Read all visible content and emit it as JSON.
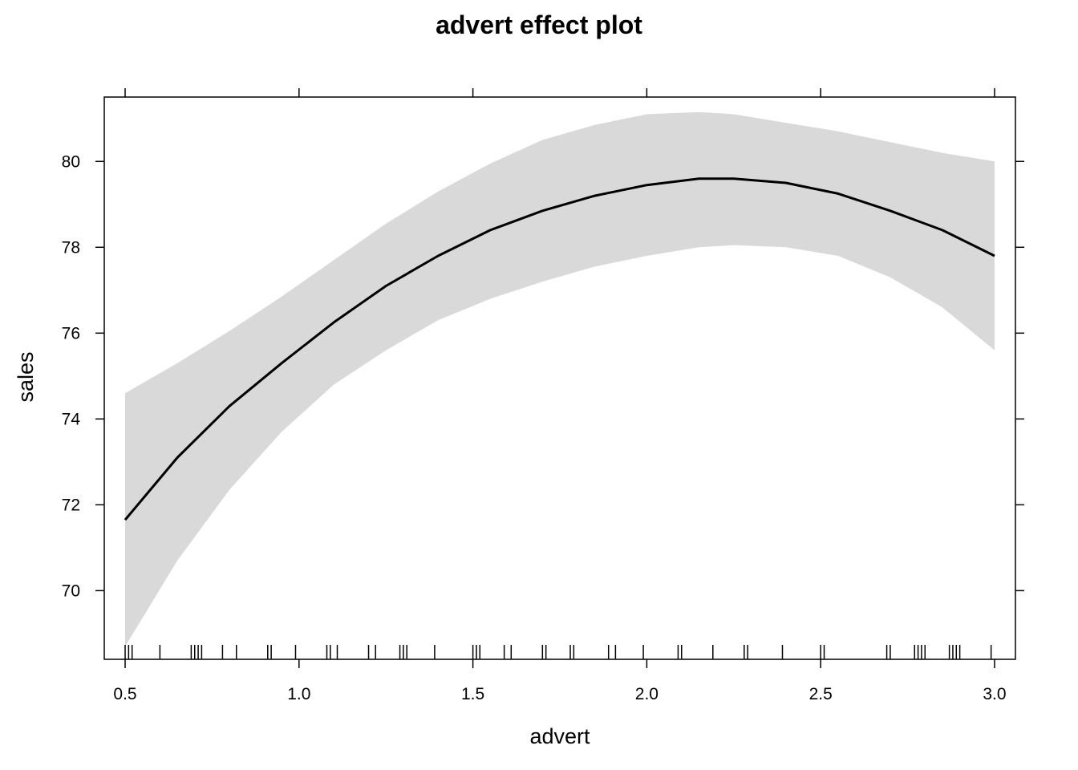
{
  "chart_data": {
    "type": "line",
    "title": "advert effect plot",
    "xlabel": "advert",
    "ylabel": "sales",
    "xlim": [
      0.44,
      3.06
    ],
    "ylim": [
      68.4,
      81.5
    ],
    "x_ticks": [
      0.5,
      1.0,
      1.5,
      2.0,
      2.5,
      3.0
    ],
    "x_tick_labels": [
      "0.5",
      "1.0",
      "1.5",
      "2.0",
      "2.5",
      "3.0"
    ],
    "y_ticks": [
      70,
      72,
      74,
      76,
      78,
      80
    ],
    "y_tick_labels": [
      "70",
      "72",
      "74",
      "76",
      "78",
      "80"
    ],
    "grid": false,
    "legend": "none",
    "colors": {
      "line": "#000000",
      "band": "#d9d9d9",
      "frame": "#000000"
    },
    "series": [
      {
        "x": [
          0.5,
          0.65,
          0.8,
          0.95,
          1.1,
          1.25,
          1.4,
          1.55,
          1.7,
          1.85,
          2.0,
          2.15,
          2.25,
          2.4,
          2.55,
          2.7,
          2.85,
          3.0
        ],
        "y": [
          71.65,
          73.1,
          74.3,
          75.3,
          76.25,
          77.1,
          77.8,
          78.4,
          78.85,
          79.2,
          79.45,
          79.6,
          79.6,
          79.5,
          79.25,
          78.85,
          78.4,
          77.8
        ],
        "lower": [
          68.7,
          70.7,
          72.35,
          73.7,
          74.8,
          75.6,
          76.3,
          76.8,
          77.2,
          77.55,
          77.8,
          78.0,
          78.05,
          78.0,
          77.8,
          77.3,
          76.6,
          75.6
        ],
        "upper": [
          74.6,
          75.3,
          76.05,
          76.85,
          77.7,
          78.55,
          79.3,
          79.95,
          80.5,
          80.85,
          81.1,
          81.15,
          81.1,
          80.9,
          80.7,
          80.45,
          80.2,
          80.0
        ]
      }
    ],
    "rug_x": [
      0.5,
      0.51,
      0.52,
      0.6,
      0.69,
      0.7,
      0.71,
      0.72,
      0.78,
      0.82,
      0.91,
      0.92,
      0.99,
      1.08,
      1.09,
      1.11,
      1.2,
      1.22,
      1.29,
      1.3,
      1.31,
      1.39,
      1.5,
      1.51,
      1.52,
      1.59,
      1.61,
      1.7,
      1.71,
      1.78,
      1.79,
      1.89,
      1.91,
      1.99,
      2.09,
      2.1,
      2.19,
      2.28,
      2.29,
      2.39,
      2.5,
      2.51,
      2.69,
      2.7,
      2.77,
      2.78,
      2.79,
      2.8,
      2.87,
      2.88,
      2.89,
      2.9,
      2.99
    ]
  }
}
